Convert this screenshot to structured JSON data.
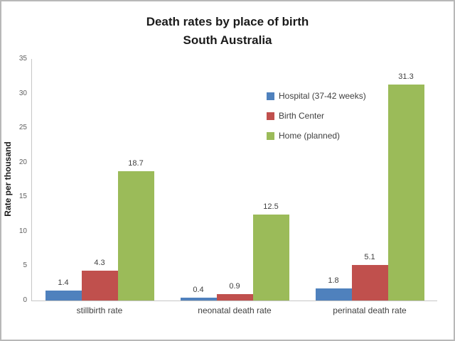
{
  "chart_data": {
    "type": "bar",
    "title": "Death rates by place of birth",
    "subtitle": "South Australia",
    "ylabel": "Rate per thousand",
    "xlabel": "",
    "ylim": [
      0,
      35
    ],
    "yticks": [
      0,
      5,
      10,
      15,
      20,
      25,
      30,
      35
    ],
    "grid": false,
    "legend_position": "inside-top-right",
    "categories": [
      "stillbirth rate",
      "neonatal death rate",
      "perinatal death rate"
    ],
    "series": [
      {
        "name": "Hospital (37-42 weeks)",
        "color": "#4F81BD",
        "values": [
          1.4,
          0.4,
          1.8
        ]
      },
      {
        "name": "Birth Center",
        "color": "#C0504D",
        "values": [
          4.3,
          0.9,
          5.1
        ]
      },
      {
        "name": "Home (planned)",
        "color": "#9BBB59",
        "values": [
          18.7,
          12.5,
          31.3
        ]
      }
    ],
    "data_labels": [
      [
        "1.4",
        "0.4",
        "1.8"
      ],
      [
        "4.3",
        "0.9",
        "5.1"
      ],
      [
        "18.7",
        "12.5",
        "31.3"
      ]
    ]
  },
  "colors": {
    "axis_line": "#c6c6c6",
    "tick_text": "#5f5f5f",
    "label_text": "#3f3f3f",
    "frame_border": "#b8b8b8"
  }
}
